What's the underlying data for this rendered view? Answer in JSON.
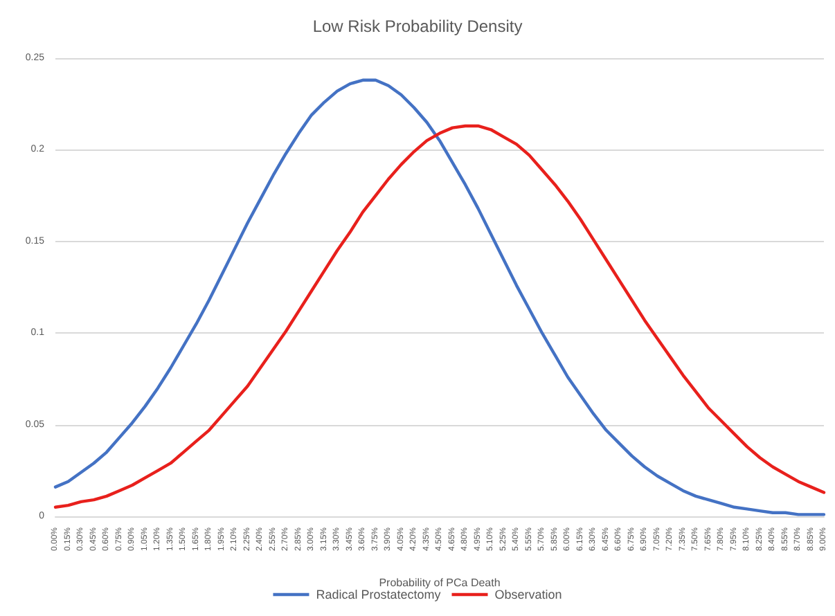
{
  "chart_data": {
    "type": "line",
    "title": "Low Risk Probability Density",
    "xlabel": "Probability of PCa Death",
    "categories": [
      "0.00%",
      "0.15%",
      "0.30%",
      "0.45%",
      "0.60%",
      "0.75%",
      "0.90%",
      "1.05%",
      "1.20%",
      "1.35%",
      "1.50%",
      "1.65%",
      "1.80%",
      "1.95%",
      "2.10%",
      "2.25%",
      "2.40%",
      "2.55%",
      "2.70%",
      "2.85%",
      "3.00%",
      "3.15%",
      "3.30%",
      "3.45%",
      "3.60%",
      "3.75%",
      "3.90%",
      "4.05%",
      "4.20%",
      "4.35%",
      "4.50%",
      "4.65%",
      "4.80%",
      "4.95%",
      "5.10%",
      "5.25%",
      "5.40%",
      "5.55%",
      "5.70%",
      "5.85%",
      "6.00%",
      "6.15%",
      "6.30%",
      "6.45%",
      "6.60%",
      "6.75%",
      "6.90%",
      "7.05%",
      "7.20%",
      "7.35%",
      "7.50%",
      "7.65%",
      "7.80%",
      "7.95%",
      "8.10%",
      "8.25%",
      "8.40%",
      "8.55%",
      "8.70%",
      "8.85%",
      "9.00%"
    ],
    "series": [
      {
        "name": "Radical Prostatectomy",
        "color": "#4472c4",
        "values": [
          0.016,
          0.019,
          0.024,
          0.029,
          0.035,
          0.043,
          0.051,
          0.06,
          0.07,
          0.081,
          0.093,
          0.105,
          0.118,
          0.132,
          0.146,
          0.16,
          0.173,
          0.186,
          0.198,
          0.209,
          0.219,
          0.226,
          0.232,
          0.236,
          0.238,
          0.238,
          0.235,
          0.23,
          0.223,
          0.215,
          0.205,
          0.193,
          0.181,
          0.168,
          0.154,
          0.14,
          0.126,
          0.113,
          0.1,
          0.088,
          0.076,
          0.066,
          0.056,
          0.047,
          0.04,
          0.033,
          0.027,
          0.022,
          0.018,
          0.014,
          0.011,
          0.009,
          0.007,
          0.005,
          0.004,
          0.003,
          0.002,
          0.002,
          0.001,
          0.001,
          0.001
        ]
      },
      {
        "name": "Observation",
        "color": "#e8201c",
        "values": [
          0.005,
          0.006,
          0.008,
          0.009,
          0.011,
          0.014,
          0.017,
          0.021,
          0.025,
          0.029,
          0.035,
          0.041,
          0.047,
          0.055,
          0.063,
          0.071,
          0.081,
          0.091,
          0.101,
          0.112,
          0.123,
          0.134,
          0.145,
          0.155,
          0.166,
          0.175,
          0.184,
          0.192,
          0.199,
          0.205,
          0.209,
          0.212,
          0.213,
          0.213,
          0.211,
          0.207,
          0.203,
          0.197,
          0.189,
          0.181,
          0.172,
          0.162,
          0.151,
          0.14,
          0.129,
          0.118,
          0.107,
          0.097,
          0.087,
          0.077,
          0.068,
          0.059,
          0.052,
          0.045,
          0.038,
          0.032,
          0.027,
          0.023,
          0.019,
          0.016,
          0.013
        ]
      }
    ],
    "ylim": [
      0,
      0.25
    ],
    "yticks": [
      0,
      0.05,
      0.1,
      0.15,
      0.2,
      0.25
    ],
    "grid": "y",
    "legend": "bottom",
    "marker": "none",
    "line_style": "solid"
  }
}
